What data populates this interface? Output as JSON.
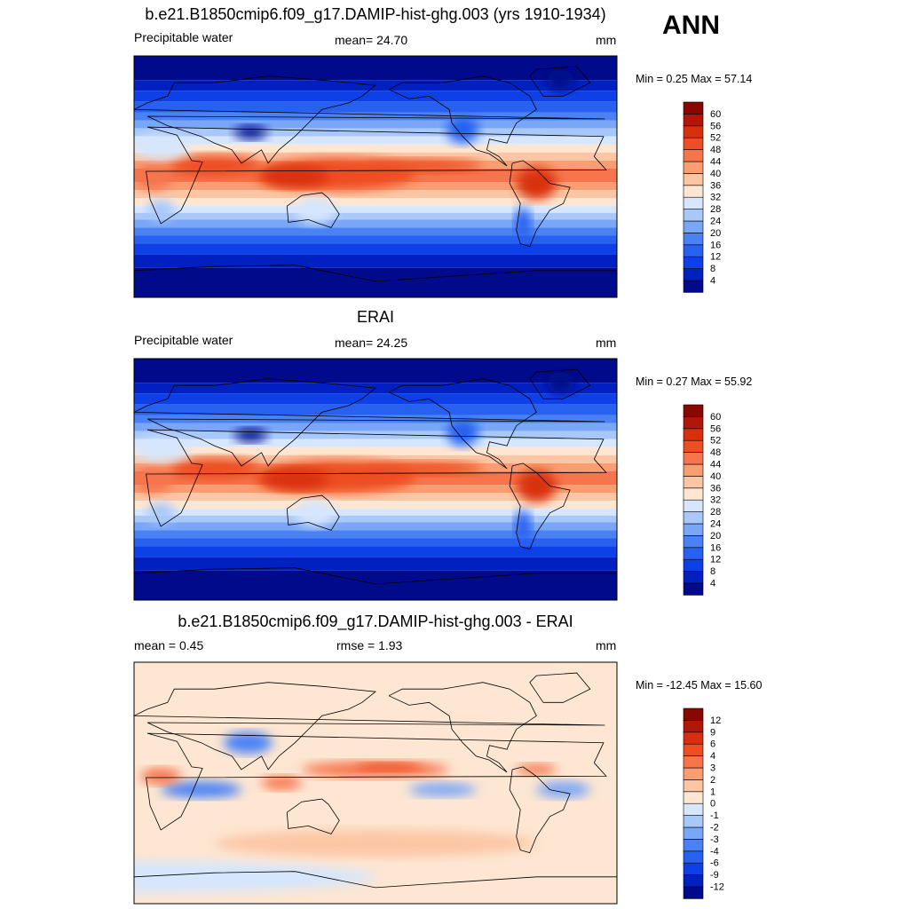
{
  "season": "ANN",
  "colors": {
    "abs": [
      "#000a8a",
      "#0020c0",
      "#0d40e6",
      "#2860f0",
      "#4a82f5",
      "#7aa6f7",
      "#a9c8fa",
      "#d6e6fc",
      "#fde6d2",
      "#fcc6a4",
      "#fb9d72",
      "#f6754d",
      "#ee4e23",
      "#d8300f",
      "#b01706",
      "#880701"
    ],
    "diff": [
      "#000a8a",
      "#0020c0",
      "#0d40e6",
      "#2860f0",
      "#4a82f5",
      "#7aa6f7",
      "#a9c8fa",
      "#d6e6fc",
      "#fde6d2",
      "#fcc6a4",
      "#fb9d72",
      "#f6754d",
      "#ee4e23",
      "#d8300f",
      "#b01706",
      "#880701"
    ]
  },
  "panels": [
    {
      "id": "test",
      "title": "b.e21.B1850cmip6.f09_g17.DAMIP-hist-ghg.003 (yrs 1910-1934)",
      "left_label": "Precipitable water",
      "center_label": "mean=  24.70",
      "right_label": "mm",
      "minmax": "Min =   0.25 Max =  57.14"
    },
    {
      "id": "obs",
      "title": "ERAI",
      "left_label": "Precipitable water",
      "center_label": "mean=  24.25",
      "right_label": "mm",
      "minmax": "Min =   0.27 Max =  55.92"
    },
    {
      "id": "diff",
      "title": "b.e21.B1850cmip6.f09_g17.DAMIP-hist-ghg.003 - ERAI",
      "left_label": "mean =   0.45",
      "center_label": "rmse =   1.93",
      "right_label": "mm",
      "minmax": "Min = -12.45 Max =  15.60"
    }
  ],
  "chart_data": [
    {
      "type": "heatmap",
      "title": "b.e21.B1850cmip6.f09_g17.DAMIP-hist-ghg.003 (yrs 1910-1934)",
      "variable": "Precipitable water",
      "units": "mm",
      "mean": 24.7,
      "min": 0.25,
      "max": 57.14,
      "colorbar_levels": [
        "4",
        "8",
        "12",
        "16",
        "20",
        "24",
        "28",
        "32",
        "36",
        "40",
        "44",
        "48",
        "52",
        "56",
        "60"
      ]
    },
    {
      "type": "heatmap",
      "title": "ERAI",
      "variable": "Precipitable water",
      "units": "mm",
      "mean": 24.25,
      "min": 0.27,
      "max": 55.92,
      "colorbar_levels": [
        "4",
        "8",
        "12",
        "16",
        "20",
        "24",
        "28",
        "32",
        "36",
        "40",
        "44",
        "48",
        "52",
        "56",
        "60"
      ]
    },
    {
      "type": "heatmap",
      "title": "b.e21.B1850cmip6.f09_g17.DAMIP-hist-ghg.003 - ERAI",
      "units": "mm",
      "mean": 0.45,
      "rmse": 1.93,
      "min": -12.45,
      "max": 15.6,
      "colorbar_levels": [
        "-12",
        "-9",
        "-6",
        "-4",
        "-3",
        "-2",
        "-1",
        "0",
        "1",
        "2",
        "3",
        "4",
        "6",
        "9",
        "12"
      ]
    }
  ]
}
